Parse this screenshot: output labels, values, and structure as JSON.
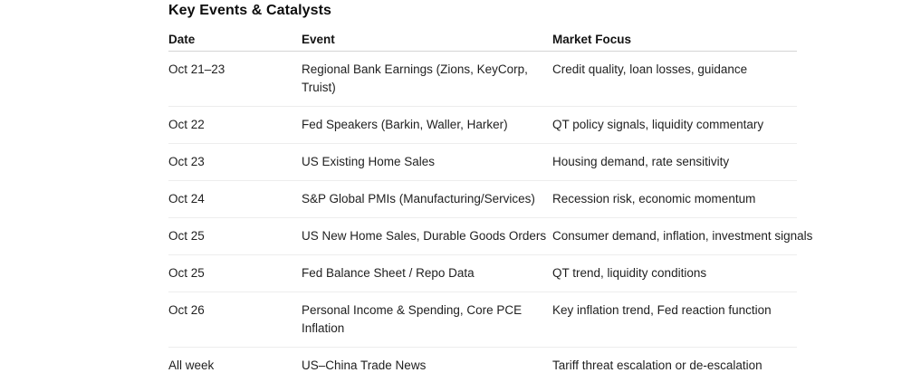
{
  "page": {
    "title": "Key Events & Catalysts"
  },
  "colors": {
    "background": "#ffffff",
    "title_text": "#0d0d0d",
    "body_text": "#1f1f1f",
    "header_divider": "#d4d4d4",
    "row_divider": "#ededed"
  },
  "table": {
    "columns": [
      "Date",
      "Event",
      "Market Focus"
    ],
    "rows": [
      {
        "date": "Oct 21–23",
        "event": "Regional Bank Earnings (Zions, KeyCorp, Truist)",
        "focus": "Credit quality, loan losses, guidance"
      },
      {
        "date": "Oct 22",
        "event": "Fed Speakers (Barkin, Waller, Harker)",
        "focus": "QT policy signals, liquidity commentary"
      },
      {
        "date": "Oct 23",
        "event": "US Existing Home Sales",
        "focus": "Housing demand, rate sensitivity"
      },
      {
        "date": "Oct 24",
        "event": "S&P Global PMIs (Manufacturing/Services)",
        "focus": "Recession risk, economic momentum"
      },
      {
        "date": "Oct 25",
        "event": "US New Home Sales, Durable Goods Orders",
        "focus": "Consumer demand, inflation, investment signals"
      },
      {
        "date": "Oct 25",
        "event": "Fed Balance Sheet / Repo Data",
        "focus": "QT trend, liquidity conditions"
      },
      {
        "date": "Oct 26",
        "event": "Personal Income & Spending, Core PCE Inflation",
        "focus": "Key inflation trend, Fed reaction function"
      },
      {
        "date": "All week",
        "event": "US–China Trade News",
        "focus": "Tariff threat escalation or de-escalation"
      }
    ]
  }
}
